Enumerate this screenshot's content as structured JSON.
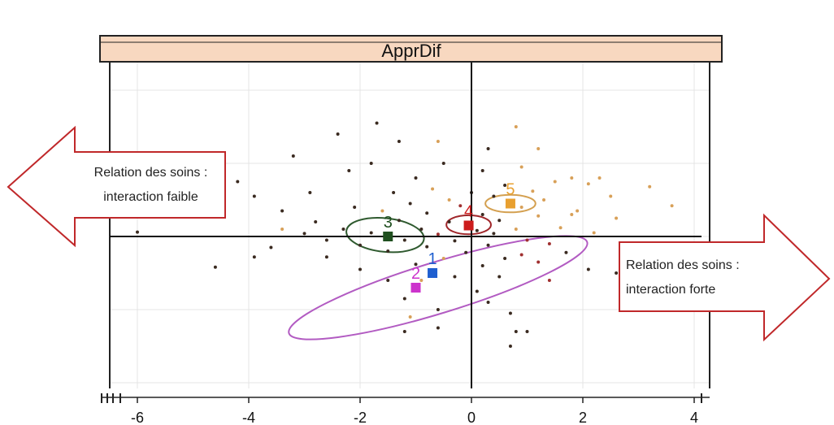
{
  "chart_data": {
    "type": "scatter",
    "title": "",
    "panel_title": "ApprDif",
    "xlabel": "",
    "ylabel": "",
    "xlim": [
      -6.6,
      4.2
    ],
    "ylim": [
      -2.6,
      4.0
    ],
    "xticks": [
      -6,
      -4,
      -2,
      0,
      2,
      4
    ],
    "xtick_labels": [
      "-6",
      "-4",
      "-2",
      "0",
      "2",
      "4"
    ],
    "grid": true,
    "colors": {
      "c1": "#1f5fd0",
      "c2": "#cc33cc",
      "c3": "#1f4f1f",
      "c4": "#cc1c1c",
      "c5": "#e8a030",
      "ellipse1": "#b25bc2",
      "ellipse3": "#2f5a2f",
      "ellipse4": "#a0262a",
      "ellipse5": "#d4a050",
      "dark": "#3a2a20",
      "orange": "#d8a058",
      "red": "#a03030"
    },
    "centroids": [
      {
        "label": "1",
        "x": -0.7,
        "y": -0.5,
        "color": "#1f5fd0"
      },
      {
        "label": "2",
        "x": -1.0,
        "y": -0.7,
        "color": "#cc33cc"
      },
      {
        "label": "3",
        "x": -1.5,
        "y": 0.0,
        "color": "#1f4f1f"
      },
      {
        "label": "4",
        "x": -0.05,
        "y": 0.15,
        "color": "#cc1c1c"
      },
      {
        "label": "5",
        "x": 0.7,
        "y": 0.45,
        "color": "#e8a030"
      }
    ],
    "ellipses": [
      {
        "cluster": "2",
        "cx": -0.6,
        "cy": -0.7,
        "rx": 2.8,
        "ry": 0.35,
        "angle": -17,
        "color": "#b25bc2"
      },
      {
        "cluster": "3",
        "cx": -1.55,
        "cy": 0.02,
        "rx": 0.7,
        "ry": 0.23,
        "angle": 6,
        "color": "#2f5a2f"
      },
      {
        "cluster": "4",
        "cx": -0.05,
        "cy": 0.16,
        "rx": 0.4,
        "ry": 0.13,
        "angle": 0,
        "color": "#a0262a"
      },
      {
        "cluster": "5",
        "cx": 0.7,
        "cy": 0.45,
        "rx": 0.45,
        "ry": 0.12,
        "angle": 0,
        "color": "#d4a050"
      }
    ],
    "points": [
      {
        "x": 0.7,
        "y": 3.8,
        "c": "dark"
      },
      {
        "x": -2.4,
        "y": 1.4,
        "c": "dark"
      },
      {
        "x": -1.3,
        "y": 1.3,
        "c": "dark"
      },
      {
        "x": -0.6,
        "y": 1.3,
        "c": "orange"
      },
      {
        "x": 0.3,
        "y": 1.2,
        "c": "dark"
      },
      {
        "x": 1.2,
        "y": 1.2,
        "c": "orange"
      },
      {
        "x": -3.2,
        "y": 1.1,
        "c": "dark"
      },
      {
        "x": -1.8,
        "y": 1.0,
        "c": "dark"
      },
      {
        "x": -0.5,
        "y": 1.0,
        "c": "dark"
      },
      {
        "x": -2.2,
        "y": 0.9,
        "c": "dark"
      },
      {
        "x": 0.2,
        "y": 0.9,
        "c": "dark"
      },
      {
        "x": 1.8,
        "y": 0.8,
        "c": "orange"
      },
      {
        "x": 2.3,
        "y": 0.8,
        "c": "orange"
      },
      {
        "x": -4.2,
        "y": 0.75,
        "c": "dark"
      },
      {
        "x": -1.0,
        "y": 0.8,
        "c": "dark"
      },
      {
        "x": 0.6,
        "y": 0.7,
        "c": "dark"
      },
      {
        "x": 1.5,
        "y": 0.75,
        "c": "orange"
      },
      {
        "x": 2.1,
        "y": 0.72,
        "c": "orange"
      },
      {
        "x": -2.9,
        "y": 0.6,
        "c": "dark"
      },
      {
        "x": -1.4,
        "y": 0.6,
        "c": "dark"
      },
      {
        "x": -0.7,
        "y": 0.65,
        "c": "orange"
      },
      {
        "x": 0.0,
        "y": 0.6,
        "c": "dark"
      },
      {
        "x": 1.1,
        "y": 0.62,
        "c": "orange"
      },
      {
        "x": 3.2,
        "y": 0.68,
        "c": "orange"
      },
      {
        "x": -3.9,
        "y": 0.55,
        "c": "dark"
      },
      {
        "x": -0.4,
        "y": 0.5,
        "c": "orange"
      },
      {
        "x": 0.4,
        "y": 0.55,
        "c": "dark"
      },
      {
        "x": 1.3,
        "y": 0.5,
        "c": "orange"
      },
      {
        "x": 2.5,
        "y": 0.55,
        "c": "orange"
      },
      {
        "x": -1.1,
        "y": 0.45,
        "c": "dark"
      },
      {
        "x": -0.2,
        "y": 0.42,
        "c": "red"
      },
      {
        "x": 0.9,
        "y": 0.4,
        "c": "orange"
      },
      {
        "x": 3.6,
        "y": 0.42,
        "c": "orange"
      },
      {
        "x": -2.1,
        "y": 0.4,
        "c": "dark"
      },
      {
        "x": -1.6,
        "y": 0.35,
        "c": "orange"
      },
      {
        "x": -0.8,
        "y": 0.32,
        "c": "dark"
      },
      {
        "x": 0.2,
        "y": 0.3,
        "c": "dark"
      },
      {
        "x": 1.9,
        "y": 0.35,
        "c": "orange"
      },
      {
        "x": -2.8,
        "y": 0.2,
        "c": "dark"
      },
      {
        "x": -1.3,
        "y": 0.22,
        "c": "dark"
      },
      {
        "x": -0.4,
        "y": 0.2,
        "c": "dark"
      },
      {
        "x": 0.5,
        "y": 0.22,
        "c": "dark"
      },
      {
        "x": 1.2,
        "y": 0.28,
        "c": "orange"
      },
      {
        "x": 2.6,
        "y": 0.25,
        "c": "orange"
      },
      {
        "x": -3.4,
        "y": 0.1,
        "c": "orange"
      },
      {
        "x": -2.3,
        "y": 0.1,
        "c": "dark"
      },
      {
        "x": -0.9,
        "y": 0.1,
        "c": "dark"
      },
      {
        "x": 0.1,
        "y": 0.08,
        "c": "dark"
      },
      {
        "x": 0.8,
        "y": 0.1,
        "c": "orange"
      },
      {
        "x": 1.6,
        "y": 0.12,
        "c": "orange"
      },
      {
        "x": -6.0,
        "y": 0.06,
        "c": "dark"
      },
      {
        "x": -3.0,
        "y": 0.04,
        "c": "dark"
      },
      {
        "x": -1.8,
        "y": 0.05,
        "c": "dark"
      },
      {
        "x": -0.6,
        "y": 0.03,
        "c": "red"
      },
      {
        "x": 0.4,
        "y": 0.04,
        "c": "dark"
      },
      {
        "x": 2.2,
        "y": 0.05,
        "c": "orange"
      },
      {
        "x": -2.6,
        "y": -0.05,
        "c": "dark"
      },
      {
        "x": -1.2,
        "y": -0.05,
        "c": "dark"
      },
      {
        "x": -0.3,
        "y": -0.06,
        "c": "dark"
      },
      {
        "x": 1.0,
        "y": -0.05,
        "c": "red"
      },
      {
        "x": -3.6,
        "y": -0.15,
        "c": "dark"
      },
      {
        "x": -2.0,
        "y": -0.12,
        "c": "dark"
      },
      {
        "x": -0.8,
        "y": -0.14,
        "c": "dark"
      },
      {
        "x": 0.3,
        "y": -0.12,
        "c": "dark"
      },
      {
        "x": 1.4,
        "y": -0.1,
        "c": "red"
      },
      {
        "x": -1.5,
        "y": -0.2,
        "c": "dark"
      },
      {
        "x": -0.1,
        "y": -0.22,
        "c": "dark"
      },
      {
        "x": 0.9,
        "y": -0.25,
        "c": "red"
      },
      {
        "x": 1.7,
        "y": -0.22,
        "c": "dark"
      },
      {
        "x": -3.9,
        "y": -0.28,
        "c": "dark"
      },
      {
        "x": -2.6,
        "y": -0.28,
        "c": "dark"
      },
      {
        "x": -0.5,
        "y": -0.3,
        "c": "orange"
      },
      {
        "x": 0.6,
        "y": -0.3,
        "c": "dark"
      },
      {
        "x": 1.2,
        "y": -0.35,
        "c": "red"
      },
      {
        "x": -1.0,
        "y": -0.38,
        "c": "dark"
      },
      {
        "x": 0.2,
        "y": -0.4,
        "c": "dark"
      },
      {
        "x": -4.6,
        "y": -0.42,
        "c": "dark"
      },
      {
        "x": -2.0,
        "y": -0.45,
        "c": "dark"
      },
      {
        "x": 2.1,
        "y": -0.45,
        "c": "dark"
      },
      {
        "x": 2.6,
        "y": -0.5,
        "c": "dark"
      },
      {
        "x": -0.3,
        "y": -0.55,
        "c": "dark"
      },
      {
        "x": 0.5,
        "y": -0.55,
        "c": "dark"
      },
      {
        "x": -1.5,
        "y": -0.6,
        "c": "dark"
      },
      {
        "x": 0.1,
        "y": -0.75,
        "c": "dark"
      },
      {
        "x": 1.4,
        "y": -0.6,
        "c": "red"
      },
      {
        "x": -1.2,
        "y": -0.85,
        "c": "dark"
      },
      {
        "x": 0.3,
        "y": -0.9,
        "c": "dark"
      },
      {
        "x": -0.6,
        "y": -1.0,
        "c": "dark"
      },
      {
        "x": 0.7,
        "y": -1.05,
        "c": "dark"
      },
      {
        "x": -1.1,
        "y": -1.1,
        "c": "orange"
      },
      {
        "x": 0.8,
        "y": -1.3,
        "c": "dark"
      },
      {
        "x": 1.0,
        "y": -1.3,
        "c": "dark"
      },
      {
        "x": -0.6,
        "y": -1.25,
        "c": "dark"
      },
      {
        "x": -1.2,
        "y": -1.3,
        "c": "dark"
      },
      {
        "x": 0.7,
        "y": -1.5,
        "c": "dark"
      },
      {
        "x": -1.7,
        "y": 1.55,
        "c": "dark"
      },
      {
        "x": 0.8,
        "y": 1.5,
        "c": "orange"
      },
      {
        "x": -3.4,
        "y": 0.35,
        "c": "dark"
      },
      {
        "x": 0.9,
        "y": 0.95,
        "c": "orange"
      },
      {
        "x": 1.8,
        "y": 0.3,
        "c": "orange"
      },
      {
        "x": -0.9,
        "y": -0.6,
        "c": "orange"
      }
    ]
  },
  "annotations": {
    "left_arrow": {
      "line1": "Relation des soins :",
      "line2": "interaction faible"
    },
    "right_arrow": {
      "line1": "Relation des soins :",
      "line2": "interaction forte"
    }
  }
}
